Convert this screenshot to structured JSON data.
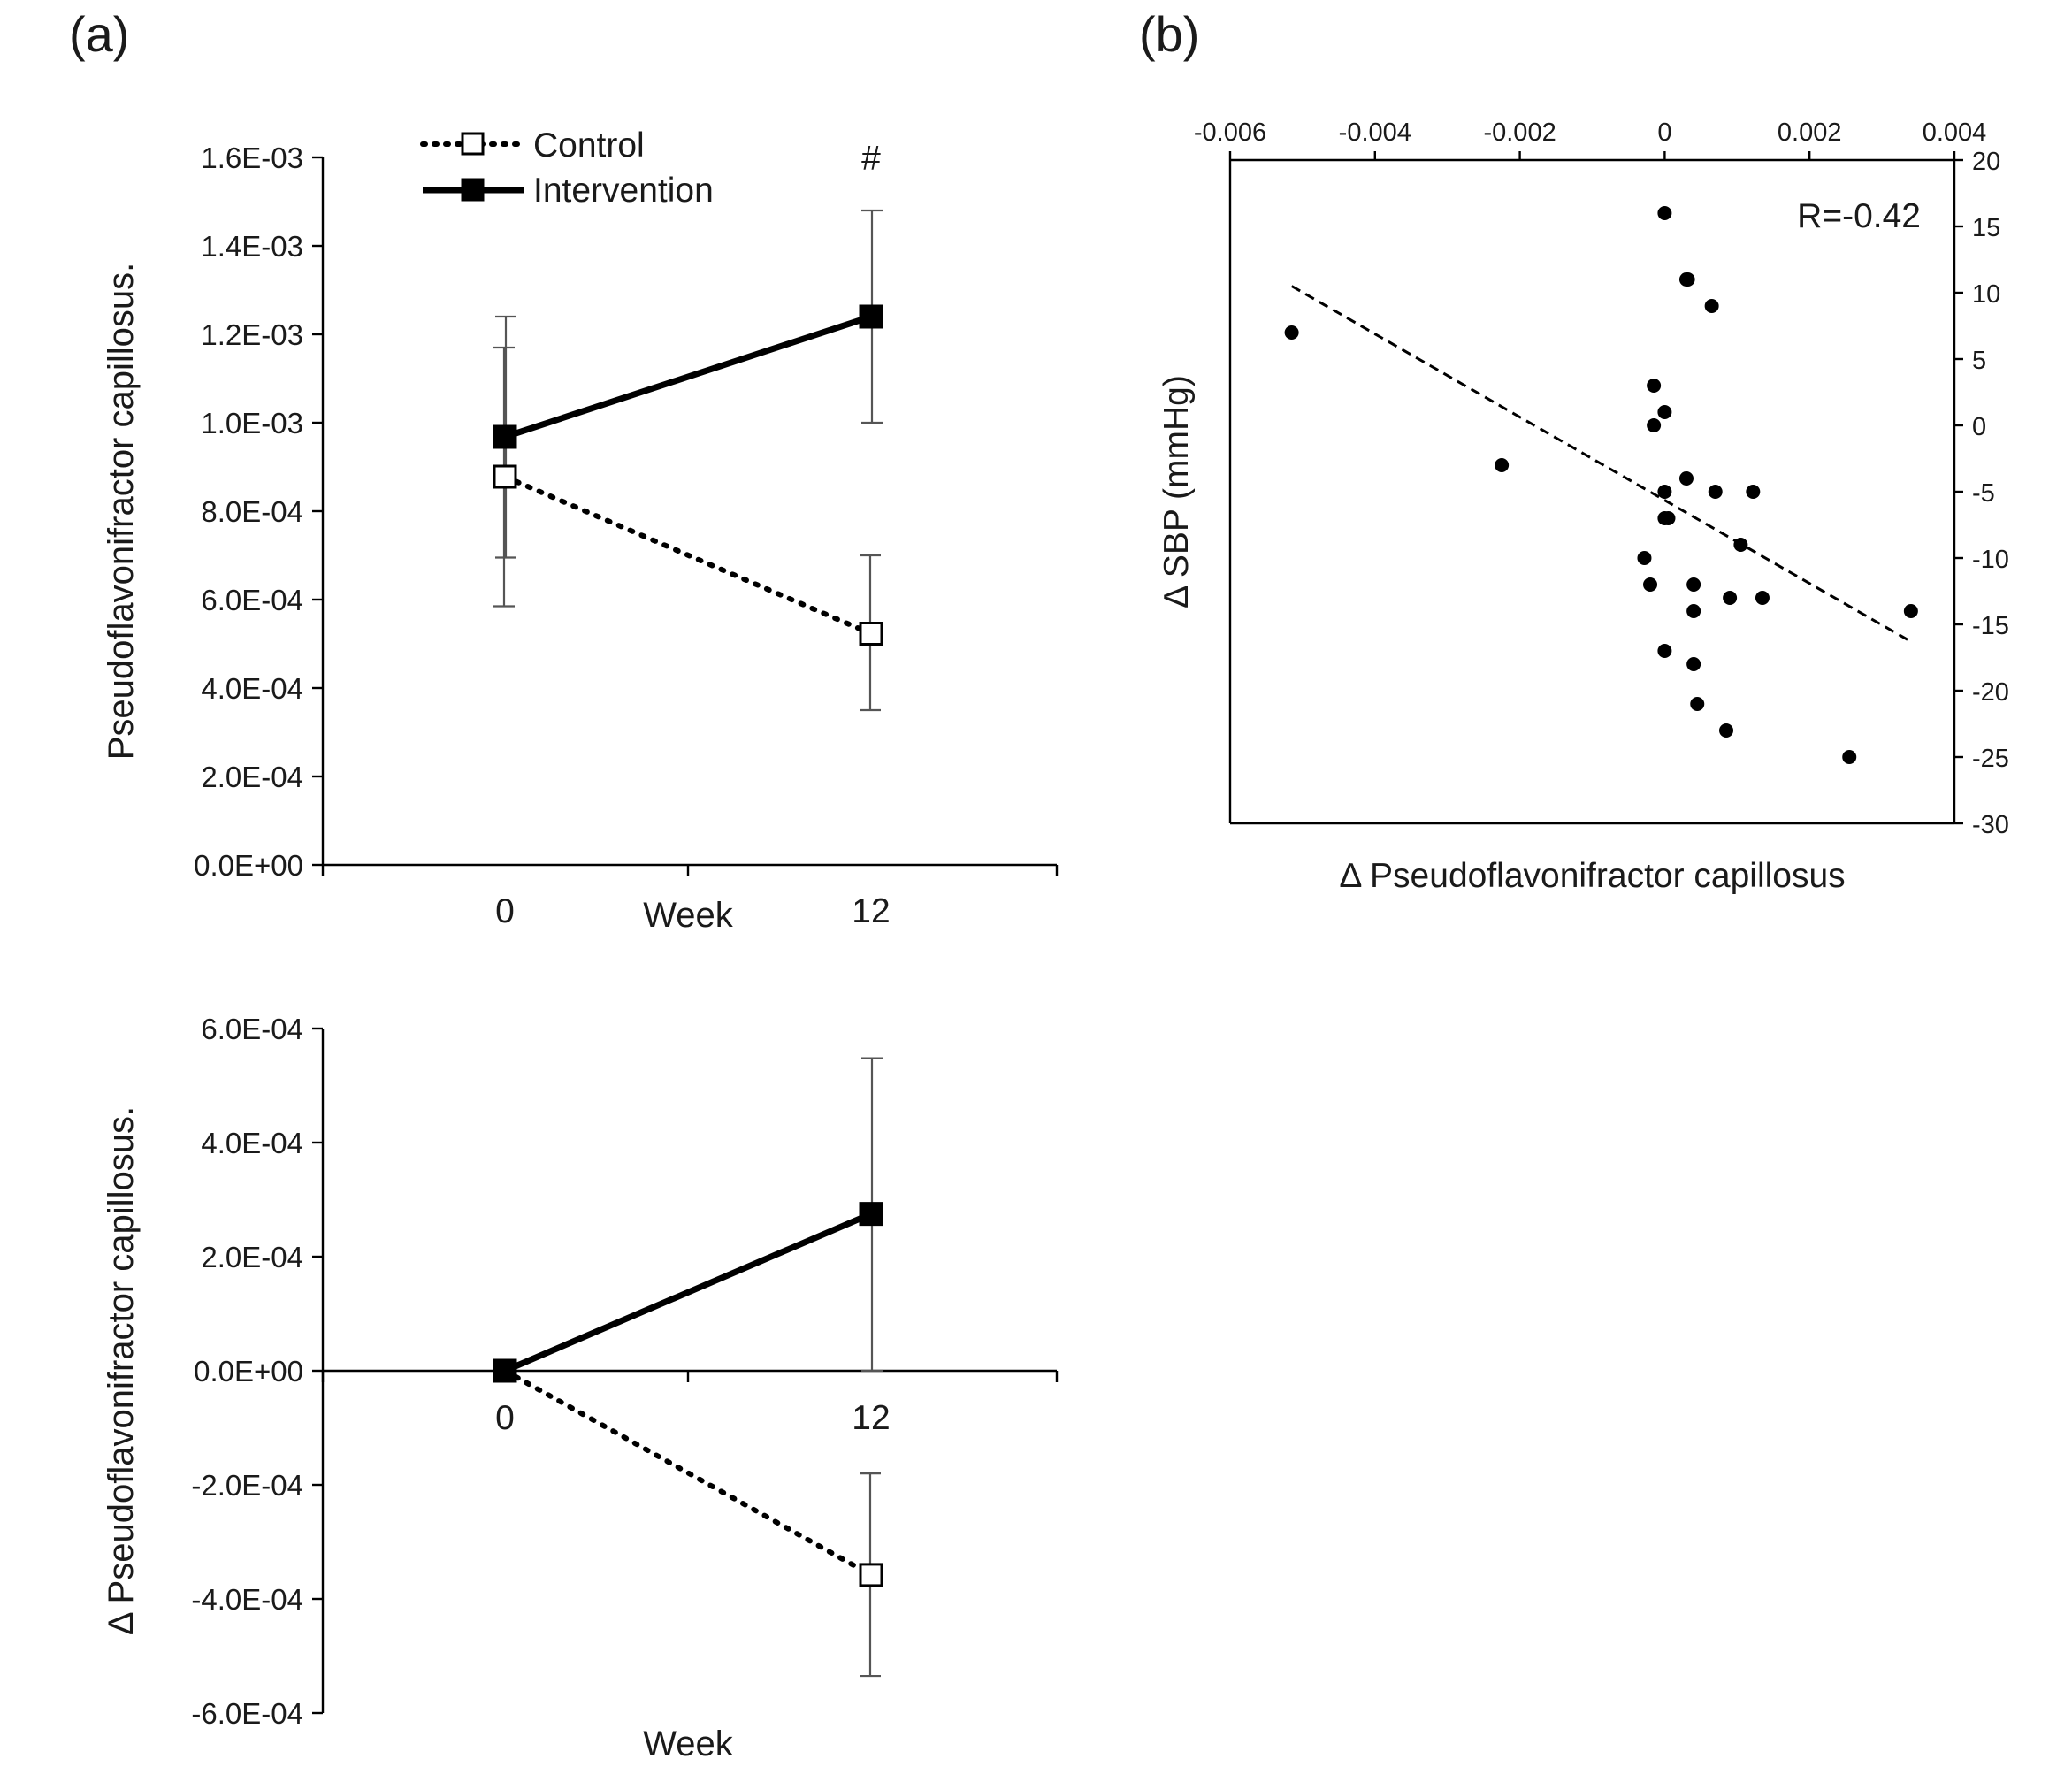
{
  "panel_labels": {
    "a": "(a)",
    "b": "(b)"
  },
  "legend": {
    "control": "Control",
    "intervention": "Intervention"
  },
  "chart_data": [
    {
      "type": "line",
      "panel": "(a)",
      "ylabel": "Pseudoflavonifractor capillosus.",
      "xlabel": "Week",
      "categories": [
        "0",
        "12"
      ],
      "ylim": [
        0,
        0.0016
      ],
      "yticks": [
        0,
        0.0002,
        0.0004,
        0.0006,
        0.0008,
        0.001,
        0.0012,
        0.0014,
        0.0016
      ],
      "ytick_labels": [
        "0.0E+00",
        "2.0E-04",
        "4.0E-04",
        "6.0E-04",
        "8.0E-04",
        "1.0E-03",
        "1.2E-03",
        "1.4E-03",
        "1.6E-03"
      ],
      "annotation": "#",
      "series": [
        {
          "name": "Control",
          "style": "dotted",
          "marker": "open-square",
          "values": [
            0.000878,
            0.000523
          ],
          "err_low": [
            0.000585,
            0.00035
          ],
          "err_high": [
            0.00117,
            0.0007
          ]
        },
        {
          "name": "Intervention",
          "style": "solid",
          "marker": "filled-square",
          "values": [
            0.000968,
            0.00124
          ],
          "err_low": [
            0.000695,
            0.001
          ],
          "err_high": [
            0.00124,
            0.00148
          ]
        }
      ]
    },
    {
      "type": "line",
      "panel": "(a)",
      "ylabel": "Δ Pseudoflavonifractor capillosus.",
      "xlabel": "Week",
      "categories": [
        "0",
        "12"
      ],
      "ylim": [
        -0.0006,
        0.0006
      ],
      "yticks": [
        -0.0006,
        -0.0004,
        -0.0002,
        0,
        0.0002,
        0.0004,
        0.0006
      ],
      "ytick_labels": [
        "-6.0E-04",
        "-4.0E-04",
        "-2.0E-04",
        "0.0E+00",
        "2.0E-04",
        "4.0E-04",
        "6.0E-04"
      ],
      "series": [
        {
          "name": "Control",
          "style": "dotted",
          "marker": "open-square",
          "values": [
            0,
            -0.000358
          ],
          "err_low": [
            0,
            -0.000535
          ],
          "err_high": [
            0,
            -0.00018
          ]
        },
        {
          "name": "Intervention",
          "style": "solid",
          "marker": "filled-square",
          "values": [
            0,
            0.000275
          ],
          "err_low": [
            0,
            0
          ],
          "err_high": [
            0,
            0.000548
          ]
        }
      ]
    },
    {
      "type": "scatter",
      "panel": "(b)",
      "xlabel": "Δ Pseudoflavonifractor capillosus",
      "ylabel": "Δ SBP (mmHg)",
      "xlim": [
        -0.006,
        0.004
      ],
      "ylim": [
        -30,
        20
      ],
      "xticks": [
        -0.006,
        -0.004,
        -0.002,
        0,
        0.002,
        0.004
      ],
      "xtick_labels": [
        "-0.006",
        "-0.004",
        "-0.002",
        "0",
        "0.002",
        "0.004"
      ],
      "yticks": [
        20,
        15,
        10,
        5,
        0,
        -5,
        -10,
        -15,
        -20,
        -25,
        -30
      ],
      "ytick_labels": [
        "20",
        "15",
        "10",
        "5",
        "0",
        "-5",
        "-10",
        "-15",
        "-20",
        "-25",
        "-30"
      ],
      "annotation": "R=-0.42",
      "trendline": {
        "x": [
          -0.00515,
          0.0034
        ],
        "y": [
          10.5,
          -16.3
        ]
      },
      "points": [
        [
          -0.00515,
          7
        ],
        [
          -0.00225,
          -3
        ],
        [
          0,
          16
        ],
        [
          0.0003,
          11
        ],
        [
          0.00032,
          11
        ],
        [
          0.00065,
          9
        ],
        [
          -0.00015,
          3
        ],
        [
          0,
          1
        ],
        [
          -0.00015,
          0
        ],
        [
          0.0003,
          -4
        ],
        [
          0,
          -5
        ],
        [
          0.0007,
          -5
        ],
        [
          0.00122,
          -5
        ],
        [
          0,
          -7
        ],
        [
          5e-05,
          -7
        ],
        [
          0.00105,
          -9
        ],
        [
          -0.00028,
          -10
        ],
        [
          -0.0002,
          -12
        ],
        [
          0.0004,
          -12
        ],
        [
          0.0009,
          -13
        ],
        [
          0.00135,
          -13
        ],
        [
          0.0004,
          -14
        ],
        [
          0.0034,
          -14
        ],
        [
          0,
          -17
        ],
        [
          0.0004,
          -18
        ],
        [
          0.00045,
          -21
        ],
        [
          0.00085,
          -23
        ],
        [
          0.00255,
          -25
        ]
      ]
    }
  ]
}
